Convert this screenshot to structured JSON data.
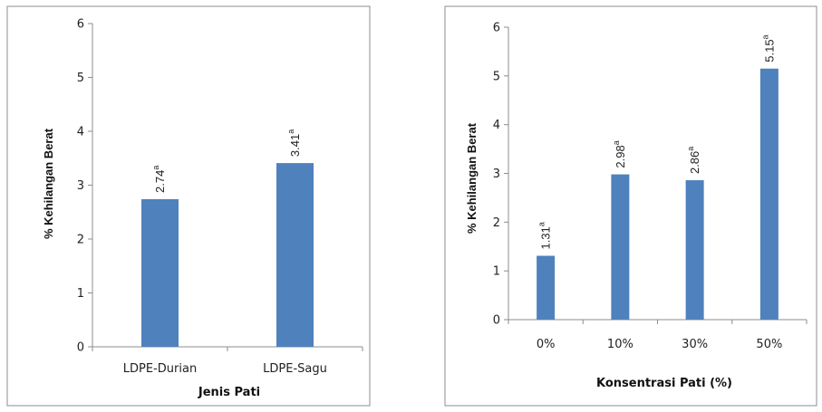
{
  "chart_data": [
    {
      "type": "bar",
      "categories": [
        "LDPE-Durian",
        "LDPE-Sagu"
      ],
      "values": [
        2.74,
        3.41
      ],
      "data_labels": [
        "2.74",
        "3.41"
      ],
      "superscripts": [
        "a",
        "a"
      ],
      "xlabel": "Jenis Pati",
      "ylabel": "% Kehilangan Berat",
      "ylim": [
        0,
        6
      ],
      "yticks": [
        "0",
        "1",
        "2",
        "3",
        "4",
        "5",
        "6"
      ],
      "grid": false,
      "bar_color": "#4f81bd"
    },
    {
      "type": "bar",
      "categories": [
        "0%",
        "10%",
        "30%",
        "50%"
      ],
      "values": [
        1.31,
        2.98,
        2.86,
        5.15
      ],
      "data_labels": [
        "1.31",
        "2.98",
        "2.86",
        "5.15"
      ],
      "superscripts": [
        "a",
        "a",
        "a",
        "a"
      ],
      "xlabel": "Konsentrasi Pati (%)",
      "ylabel": "% Kehilangan Berat",
      "ylim": [
        0,
        6
      ],
      "yticks": [
        "0",
        "1",
        "2",
        "3",
        "4",
        "5",
        "6"
      ],
      "grid": false,
      "bar_color": "#4f81bd"
    }
  ]
}
